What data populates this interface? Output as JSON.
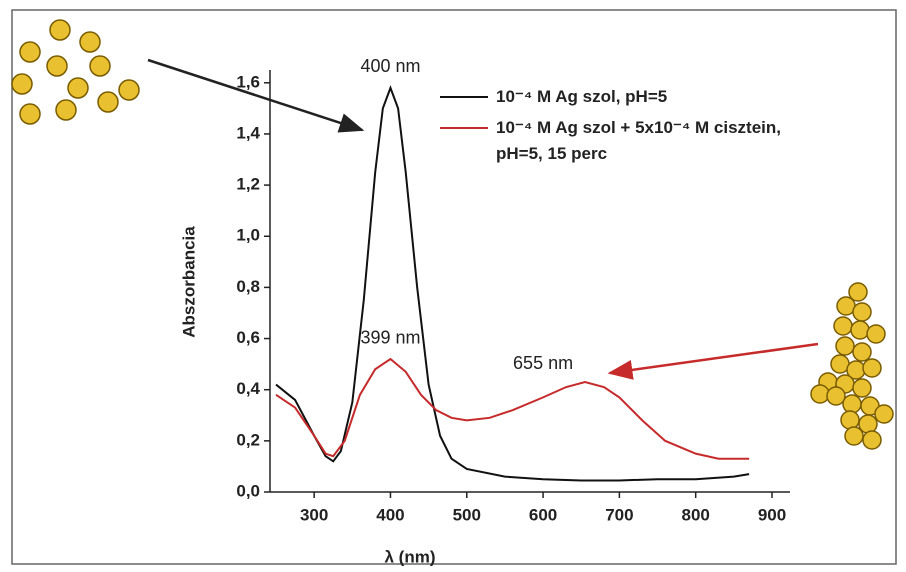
{
  "chart_data": {
    "type": "line",
    "xlabel": "λ (nm)",
    "ylabel": "Abszorbancia",
    "xlim": [
      250,
      900
    ],
    "ylim": [
      0,
      1.65
    ],
    "xticks": [
      300,
      400,
      500,
      600,
      700,
      800,
      900
    ],
    "yticks": [
      {
        "value": 0,
        "label": "0,0"
      },
      {
        "value": 0.2,
        "label": "0,2"
      },
      {
        "value": 0.4,
        "label": "0,4"
      },
      {
        "value": 0.6,
        "label": "0,6"
      },
      {
        "value": 0.8,
        "label": "0,8"
      },
      {
        "value": 1.0,
        "label": "1,0"
      },
      {
        "value": 1.2,
        "label": "1,2"
      },
      {
        "value": 1.4,
        "label": "1,4"
      },
      {
        "value": 1.6,
        "label": "1,6"
      }
    ],
    "series": [
      {
        "name": "10⁻⁴ M Ag szol, pH=5",
        "color": "#111111",
        "x": [
          250,
          275,
          300,
          315,
          325,
          335,
          350,
          365,
          380,
          390,
          400,
          410,
          420,
          435,
          450,
          465,
          480,
          500,
          550,
          600,
          650,
          700,
          750,
          800,
          850,
          870
        ],
        "values": [
          0.42,
          0.36,
          0.22,
          0.14,
          0.12,
          0.16,
          0.35,
          0.75,
          1.25,
          1.5,
          1.58,
          1.5,
          1.25,
          0.8,
          0.42,
          0.22,
          0.13,
          0.09,
          0.06,
          0.05,
          0.045,
          0.045,
          0.05,
          0.05,
          0.06,
          0.07
        ]
      },
      {
        "name": "10⁻⁴ M Ag szol + 5x10⁻⁴ M cisztein,\npH=5, 15 perc",
        "color": "#c62a2a",
        "x": [
          250,
          275,
          300,
          315,
          325,
          340,
          360,
          380,
          400,
          420,
          440,
          460,
          480,
          500,
          530,
          560,
          600,
          630,
          655,
          680,
          700,
          730,
          760,
          800,
          830,
          850,
          870
        ],
        "values": [
          0.38,
          0.33,
          0.22,
          0.15,
          0.14,
          0.2,
          0.38,
          0.48,
          0.52,
          0.47,
          0.38,
          0.32,
          0.29,
          0.28,
          0.29,
          0.32,
          0.37,
          0.41,
          0.43,
          0.41,
          0.37,
          0.28,
          0.2,
          0.15,
          0.13,
          0.13,
          0.13
        ]
      }
    ],
    "annotations": [
      {
        "text": "400 nm",
        "color": "#111111",
        "x": 400,
        "y": 1.66
      },
      {
        "text": "399 nm",
        "color": "#c62a2a",
        "x": 400,
        "y": 0.6
      },
      {
        "text": "655 nm",
        "color": "#c62a2a",
        "x": 600,
        "y": 0.5
      }
    ]
  }
}
